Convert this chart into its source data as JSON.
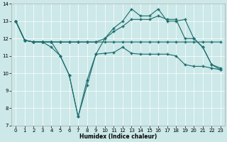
{
  "xlabel": "Humidex (Indice chaleur)",
  "bg_color": "#cce8e8",
  "line_color": "#1a6b6b",
  "grid_color": "#ffffff",
  "xlim": [
    -0.5,
    23.5
  ],
  "ylim": [
    7,
    14
  ],
  "xticks": [
    0,
    1,
    2,
    3,
    4,
    5,
    6,
    7,
    8,
    9,
    10,
    11,
    12,
    13,
    14,
    15,
    16,
    17,
    18,
    19,
    20,
    21,
    22,
    23
  ],
  "yticks": [
    7,
    8,
    9,
    10,
    11,
    12,
    13,
    14
  ],
  "line1_x": [
    0,
    1,
    2,
    3,
    4,
    5,
    6,
    7,
    8,
    9,
    10,
    11,
    12,
    13,
    14,
    15,
    16,
    17,
    18,
    19,
    20,
    21,
    22,
    23
  ],
  "line1_y": [
    13,
    11.9,
    11.8,
    11.8,
    11.8,
    11.8,
    11.8,
    11.8,
    11.8,
    11.8,
    11.8,
    11.8,
    11.8,
    11.8,
    11.8,
    11.8,
    11.8,
    11.8,
    11.8,
    11.8,
    11.8,
    11.8,
    11.8,
    11.8
  ],
  "line2_x": [
    0,
    1,
    2,
    3,
    4,
    5,
    6,
    7,
    8,
    9,
    10,
    11,
    12,
    13,
    14,
    15,
    16,
    17,
    18,
    19,
    20,
    21,
    22,
    23
  ],
  "line2_y": [
    13,
    11.9,
    11.8,
    11.8,
    11.5,
    11.0,
    9.9,
    7.5,
    9.3,
    11.1,
    11.15,
    11.2,
    11.5,
    11.15,
    11.1,
    11.1,
    11.1,
    11.1,
    11.0,
    10.5,
    10.4,
    10.4,
    10.3,
    10.2
  ],
  "line3_x": [
    0,
    1,
    2,
    3,
    4,
    5,
    6,
    7,
    8,
    9,
    10,
    11,
    12,
    13,
    14,
    15,
    16,
    17,
    18,
    19,
    20,
    21,
    22,
    23
  ],
  "line3_y": [
    13,
    11.9,
    11.8,
    11.8,
    11.8,
    11.0,
    9.9,
    7.5,
    9.6,
    11.1,
    12.0,
    12.6,
    13.0,
    13.7,
    13.3,
    13.3,
    13.7,
    13.0,
    13.0,
    13.1,
    12.0,
    11.5,
    10.5,
    10.3
  ],
  "line4_x": [
    0,
    1,
    2,
    3,
    4,
    5,
    6,
    7,
    8,
    9,
    10,
    11,
    12,
    13,
    14,
    15,
    16,
    17,
    18,
    19,
    20,
    21,
    22,
    23
  ],
  "line4_y": [
    13,
    11.9,
    11.8,
    11.8,
    11.8,
    11.8,
    11.8,
    11.8,
    11.8,
    11.8,
    12.0,
    12.4,
    12.7,
    13.1,
    13.1,
    13.1,
    13.3,
    13.1,
    13.1,
    12.0,
    12.0,
    11.5,
    10.5,
    10.2
  ]
}
